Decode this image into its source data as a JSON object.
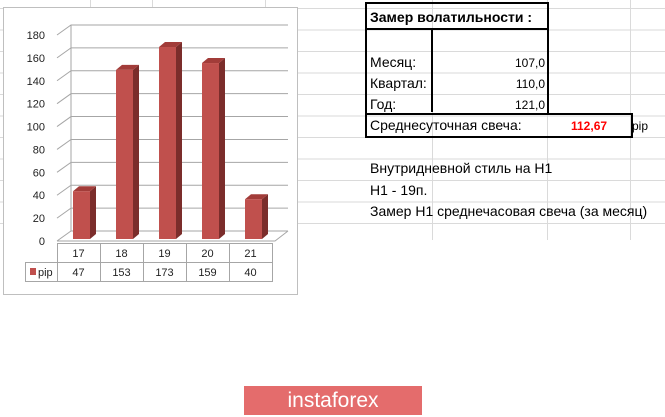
{
  "chart_data": {
    "type": "bar",
    "style": "3d-column",
    "categories": [
      "17",
      "18",
      "19",
      "20",
      "21"
    ],
    "series": [
      {
        "name": "pip",
        "values": [
          47,
          153,
          173,
          159,
          40
        ],
        "color": "#c0504d"
      }
    ],
    "ylim": [
      0,
      180
    ],
    "yticks": [
      0,
      20,
      40,
      60,
      80,
      100,
      120,
      140,
      160,
      180
    ],
    "grid": true,
    "legend": "data-table"
  },
  "sheet": {
    "title": "Замер  волатильности  :",
    "rows": [
      {
        "label": "Месяц:",
        "value": "107,0"
      },
      {
        "label": "Квартал:",
        "value": "110,0"
      },
      {
        "label": "Год:",
        "value": "121,0"
      }
    ],
    "avg_label": "Среднесуточная свеча:",
    "avg_value": "112,67",
    "avg_color": "#ff0000",
    "avg_unit": "pip",
    "notes": [
      "Внутридневной стиль на H1",
      "H1 - 19п.",
      "Замер H1 среднечасовая свеча (за месяц)"
    ]
  },
  "logo": "instaforex"
}
